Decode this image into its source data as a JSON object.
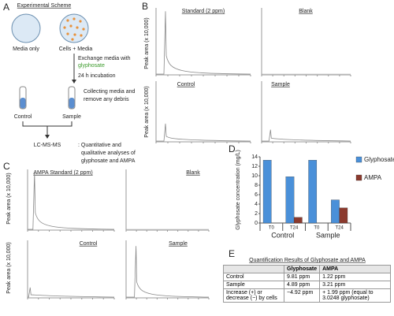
{
  "panels": {
    "a": {
      "letter": "A",
      "title": "Experimental Scheme",
      "media_only": "Media only",
      "cells_media": "Cells + Media",
      "exchange": "Exchange media with",
      "glyphosate": "glyphosate",
      "incubation": "24 h incubation",
      "collect_1": "Collecting media and",
      "collect_2": "remove any debris",
      "control": "Control",
      "sample": "Sample",
      "method": "LC-MS-MS",
      "analysis_1": ": Quantitative and",
      "analysis_2": "qualitative analyses of",
      "analysis_3": "glyphosate and AMPA"
    },
    "b": {
      "letter": "B",
      "y_label": "Peak area (x 10,000)",
      "titles": [
        "Standard (2 ppm)",
        "Blank",
        "Control",
        "Sample"
      ]
    },
    "c": {
      "letter": "C",
      "y_label": "Peak area (x 10,000)",
      "titles": [
        "AMPA Standard (2 ppm)",
        "Blank",
        "Control",
        "Sample"
      ]
    },
    "d": {
      "letter": "D"
    },
    "e": {
      "letter": "E",
      "title": "Quantification Results of Glyphosate and AMPA",
      "columns": [
        "Glyphosate",
        "AMPA"
      ],
      "rows": [
        [
          "Control",
          "9.81 ppm",
          "1.22 ppm"
        ],
        [
          "Sample",
          "4.89 ppm",
          "3.21 ppm"
        ],
        [
          "Increase (+) or decrease (−) by cells",
          "−4.92 ppm",
          "+ 1.99 ppm (equal to 3.0248 glyphosate)"
        ]
      ]
    }
  },
  "chart_data": {
    "type": "bar",
    "y_label": "Glyphosate concentration (mg/L)",
    "categories": [
      "T0",
      "T24",
      "T0",
      "T24"
    ],
    "groups": [
      "Control",
      "Sample"
    ],
    "series": [
      {
        "name": "Glyphosate",
        "color": "#4a90d9",
        "values": [
          13.3,
          9.8,
          13.3,
          4.9
        ]
      },
      {
        "name": "AMPA",
        "color": "#8b3a2e",
        "values": [
          0,
          1.2,
          0,
          3.2
        ]
      }
    ],
    "ylim": [
      0,
      14
    ],
    "yticks": [
      0,
      2,
      4,
      6,
      8,
      10,
      12,
      14
    ]
  }
}
